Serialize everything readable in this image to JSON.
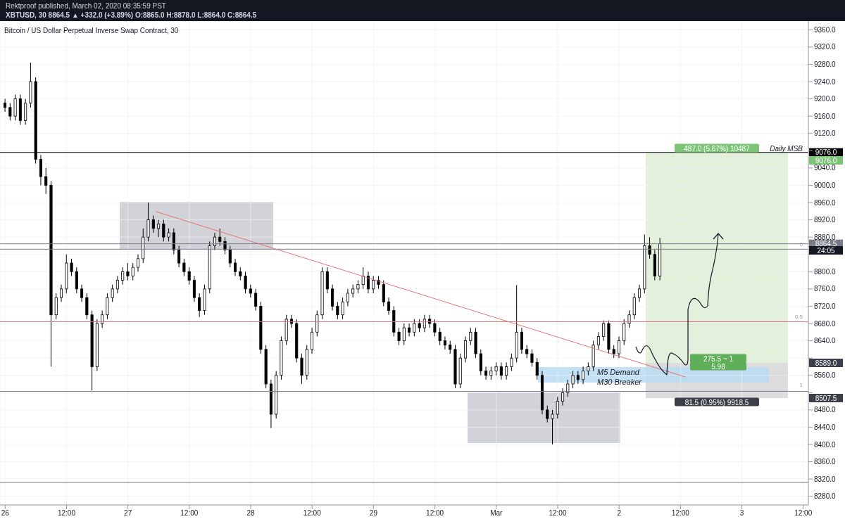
{
  "chart_data": {
    "type": "candlestick",
    "title": "Bitcoin / US Dollar Perpetual Inverse Swap Contract, 30",
    "color": "#000000",
    "x": [
      "2020-02-26T00:00",
      "2020-02-26T01:00",
      "2020-02-26T02:00",
      "2020-02-26T03:00",
      "2020-02-26T04:00",
      "2020-02-26T05:00",
      "2020-02-26T06:00",
      "2020-02-26T07:00",
      "2020-02-26T08:00",
      "2020-02-26T09:00",
      "2020-02-26T10:00",
      "2020-02-26T11:00",
      "2020-02-26T12:00",
      "2020-02-26T13:00",
      "2020-02-26T14:00",
      "2020-02-26T15:00",
      "2020-02-26T16:00",
      "2020-02-26T17:00",
      "2020-02-26T18:00",
      "2020-02-26T19:00",
      "2020-02-26T20:00",
      "2020-02-26T21:00",
      "2020-02-26T22:00",
      "2020-02-26T23:00",
      "2020-02-27T00:00",
      "2020-02-27T01:00",
      "2020-02-27T02:00",
      "2020-02-27T03:00",
      "2020-02-27T04:00",
      "2020-02-27T05:00",
      "2020-02-27T06:00",
      "2020-02-27T07:00",
      "2020-02-27T08:00",
      "2020-02-27T09:00",
      "2020-02-27T10:00",
      "2020-02-27T11:00",
      "2020-02-27T12:00",
      "2020-02-27T13:00",
      "2020-02-27T14:00",
      "2020-02-27T15:00",
      "2020-02-27T16:00",
      "2020-02-27T17:00",
      "2020-02-27T18:00",
      "2020-02-27T19:00",
      "2020-02-27T20:00",
      "2020-02-27T21:00",
      "2020-02-27T22:00",
      "2020-02-27T23:00",
      "2020-02-28T00:00",
      "2020-02-28T01:00",
      "2020-02-28T02:00",
      "2020-02-28T03:00",
      "2020-02-28T04:00",
      "2020-02-28T05:00",
      "2020-02-28T06:00",
      "2020-02-28T07:00",
      "2020-02-28T08:00",
      "2020-02-28T09:00",
      "2020-02-28T10:00",
      "2020-02-28T11:00",
      "2020-02-28T12:00",
      "2020-02-28T13:00",
      "2020-02-28T14:00",
      "2020-02-28T15:00",
      "2020-02-28T16:00",
      "2020-02-28T17:00",
      "2020-02-28T18:00",
      "2020-02-28T19:00",
      "2020-02-28T20:00",
      "2020-02-28T21:00",
      "2020-02-28T22:00",
      "2020-02-28T23:00",
      "2020-02-29T00:00",
      "2020-02-29T01:00",
      "2020-02-29T02:00",
      "2020-02-29T03:00",
      "2020-02-29T04:00",
      "2020-02-29T05:00",
      "2020-02-29T06:00",
      "2020-02-29T07:00",
      "2020-02-29T08:00",
      "2020-02-29T09:00",
      "2020-02-29T10:00",
      "2020-02-29T11:00",
      "2020-02-29T12:00",
      "2020-02-29T13:00",
      "2020-02-29T14:00",
      "2020-02-29T15:00",
      "2020-02-29T16:00",
      "2020-02-29T17:00",
      "2020-02-29T18:00",
      "2020-02-29T19:00",
      "2020-02-29T20:00",
      "2020-02-29T21:00",
      "2020-02-29T22:00",
      "2020-02-29T23:00",
      "2020-03-01T00:00",
      "2020-03-01T01:00",
      "2020-03-01T02:00",
      "2020-03-01T03:00",
      "2020-03-01T04:00",
      "2020-03-01T05:00",
      "2020-03-01T06:00",
      "2020-03-01T07:00",
      "2020-03-01T08:00",
      "2020-03-01T09:00",
      "2020-03-01T10:00",
      "2020-03-01T11:00",
      "2020-03-01T12:00",
      "2020-03-01T13:00",
      "2020-03-01T14:00",
      "2020-03-01T15:00",
      "2020-03-01T16:00",
      "2020-03-01T17:00",
      "2020-03-01T18:00",
      "2020-03-01T19:00",
      "2020-03-01T20:00",
      "2020-03-01T21:00",
      "2020-03-01T22:00",
      "2020-03-01T23:00",
      "2020-03-02T00:00",
      "2020-03-02T01:00",
      "2020-03-02T02:00",
      "2020-03-02T03:00",
      "2020-03-02T04:00",
      "2020-03-02T05:00",
      "2020-03-02T06:00",
      "2020-03-02T07:00",
      "2020-03-02T08:00"
    ],
    "ohlc": [
      [
        9190,
        9200,
        9170,
        9180
      ],
      [
        9180,
        9190,
        9150,
        9160
      ],
      [
        9160,
        9210,
        9150,
        9200
      ],
      [
        9200,
        9210,
        9140,
        9150
      ],
      [
        9150,
        9200,
        9140,
        9190
      ],
      [
        9190,
        9284,
        9180,
        9240
      ],
      [
        9240,
        9250,
        9050,
        9060
      ],
      [
        9060,
        9070,
        9000,
        9020
      ],
      [
        9020,
        9040,
        8980,
        9000
      ],
      [
        9000,
        9010,
        8580,
        8700
      ],
      [
        8700,
        8750,
        8690,
        8740
      ],
      [
        8740,
        8770,
        8730,
        8760
      ],
      [
        8760,
        8840,
        8750,
        8820
      ],
      [
        8820,
        8830,
        8790,
        8800
      ],
      [
        8800,
        8810,
        8750,
        8760
      ],
      [
        8760,
        8770,
        8730,
        8740
      ],
      [
        8740,
        8750,
        8690,
        8700
      ],
      [
        8700,
        8710,
        8525,
        8580
      ],
      [
        8580,
        8690,
        8570,
        8680
      ],
      [
        8680,
        8710,
        8670,
        8700
      ],
      [
        8700,
        8750,
        8690,
        8740
      ],
      [
        8740,
        8770,
        8730,
        8760
      ],
      [
        8760,
        8790,
        8750,
        8780
      ],
      [
        8780,
        8810,
        8770,
        8800
      ],
      [
        8800,
        8820,
        8780,
        8790
      ],
      [
        8790,
        8820,
        8780,
        8810
      ],
      [
        8810,
        8840,
        8800,
        8830
      ],
      [
        8830,
        8900,
        8820,
        8880
      ],
      [
        8880,
        8960,
        8870,
        8920
      ],
      [
        8920,
        8930,
        8890,
        8900
      ],
      [
        8900,
        8920,
        8880,
        8910
      ],
      [
        8910,
        8920,
        8870,
        8880
      ],
      [
        8880,
        8900,
        8870,
        8890
      ],
      [
        8890,
        8900,
        8840,
        8850
      ],
      [
        8850,
        8860,
        8810,
        8820
      ],
      [
        8820,
        8830,
        8790,
        8800
      ],
      [
        8800,
        8810,
        8770,
        8780
      ],
      [
        8780,
        8790,
        8730,
        8740
      ],
      [
        8740,
        8750,
        8695,
        8710
      ],
      [
        8710,
        8770,
        8700,
        8760
      ],
      [
        8760,
        8870,
        8750,
        8860
      ],
      [
        8860,
        8890,
        8850,
        8880
      ],
      [
        8880,
        8900,
        8860,
        8870
      ],
      [
        8870,
        8880,
        8840,
        8850
      ],
      [
        8850,
        8860,
        8810,
        8820
      ],
      [
        8820,
        8830,
        8790,
        8800
      ],
      [
        8800,
        8810,
        8780,
        8790
      ],
      [
        8790,
        8800,
        8750,
        8760
      ],
      [
        8760,
        8770,
        8740,
        8750
      ],
      [
        8750,
        8760,
        8710,
        8720
      ],
      [
        8720,
        8730,
        8610,
        8620
      ],
      [
        8620,
        8630,
        8530,
        8540
      ],
      [
        8540,
        8550,
        8438,
        8470
      ],
      [
        8470,
        8570,
        8460,
        8560
      ],
      [
        8560,
        8650,
        8550,
        8640
      ],
      [
        8640,
        8700,
        8630,
        8690
      ],
      [
        8690,
        8700,
        8670,
        8680
      ],
      [
        8680,
        8690,
        8590,
        8600
      ],
      [
        8600,
        8610,
        8540,
        8560
      ],
      [
        8560,
        8630,
        8550,
        8620
      ],
      [
        8620,
        8670,
        8610,
        8660
      ],
      [
        8660,
        8710,
        8650,
        8700
      ],
      [
        8700,
        8810,
        8690,
        8800
      ],
      [
        8800,
        8810,
        8750,
        8760
      ],
      [
        8760,
        8770,
        8710,
        8720
      ],
      [
        8720,
        8730,
        8690,
        8700
      ],
      [
        8700,
        8740,
        8690,
        8730
      ],
      [
        8730,
        8760,
        8720,
        8750
      ],
      [
        8750,
        8770,
        8740,
        8760
      ],
      [
        8760,
        8780,
        8750,
        8770
      ],
      [
        8770,
        8810,
        8760,
        8790
      ],
      [
        8790,
        8800,
        8750,
        8760
      ],
      [
        8760,
        8790,
        8750,
        8780
      ],
      [
        8780,
        8790,
        8760,
        8770
      ],
      [
        8770,
        8780,
        8720,
        8730
      ],
      [
        8730,
        8740,
        8700,
        8710
      ],
      [
        8710,
        8720,
        8650,
        8660
      ],
      [
        8660,
        8670,
        8630,
        8640
      ],
      [
        8640,
        8680,
        8630,
        8670
      ],
      [
        8670,
        8680,
        8650,
        8660
      ],
      [
        8660,
        8690,
        8650,
        8680
      ],
      [
        8680,
        8690,
        8660,
        8670
      ],
      [
        8670,
        8700,
        8660,
        8690
      ],
      [
        8690,
        8700,
        8670,
        8680
      ],
      [
        8680,
        8690,
        8650,
        8660
      ],
      [
        8660,
        8670,
        8630,
        8640
      ],
      [
        8640,
        8650,
        8620,
        8630
      ],
      [
        8630,
        8640,
        8610,
        8620
      ],
      [
        8620,
        8630,
        8530,
        8540
      ],
      [
        8540,
        8610,
        8530,
        8600
      ],
      [
        8600,
        8650,
        8590,
        8640
      ],
      [
        8640,
        8670,
        8630,
        8660
      ],
      [
        8660,
        8670,
        8600,
        8610
      ],
      [
        8610,
        8620,
        8560,
        8570
      ],
      [
        8570,
        8580,
        8550,
        8560
      ],
      [
        8560,
        8580,
        8550,
        8570
      ],
      [
        8570,
        8590,
        8560,
        8580
      ],
      [
        8580,
        8590,
        8550,
        8560
      ],
      [
        8560,
        8590,
        8550,
        8580
      ],
      [
        8580,
        8610,
        8570,
        8600
      ],
      [
        8600,
        8769,
        8590,
        8660
      ],
      [
        8660,
        8670,
        8610,
        8620
      ],
      [
        8620,
        8630,
        8600,
        8610
      ],
      [
        8610,
        8620,
        8580,
        8590
      ],
      [
        8590,
        8600,
        8550,
        8560
      ],
      [
        8560,
        8570,
        8470,
        8480
      ],
      [
        8480,
        8490,
        8451,
        8460
      ],
      [
        8460,
        8480,
        8400,
        8470
      ],
      [
        8470,
        8510,
        8460,
        8500
      ],
      [
        8500,
        8530,
        8490,
        8520
      ],
      [
        8520,
        8550,
        8510,
        8540
      ],
      [
        8540,
        8570,
        8530,
        8560
      ],
      [
        8560,
        8570,
        8540,
        8550
      ],
      [
        8550,
        8580,
        8540,
        8570
      ],
      [
        8570,
        8590,
        8560,
        8580
      ],
      [
        8580,
        8640,
        8570,
        8630
      ],
      [
        8630,
        8660,
        8620,
        8650
      ],
      [
        8650,
        8687,
        8640,
        8680
      ],
      [
        8680,
        8687,
        8610,
        8620
      ],
      [
        8620,
        8630,
        8600,
        8610
      ],
      [
        8610,
        8650,
        8600,
        8640
      ],
      [
        8640,
        8690,
        8630,
        8680
      ],
      [
        8680,
        8710,
        8670,
        8700
      ],
      [
        8700,
        8750,
        8690,
        8740
      ],
      [
        8740,
        8770,
        8730,
        8760
      ],
      [
        8760,
        8886,
        8750,
        8860
      ],
      [
        8860,
        8880,
        8830,
        8840
      ],
      [
        8840,
        8850,
        8780,
        8790
      ],
      [
        8790,
        8878,
        8780,
        8864.5
      ]
    ],
    "series": [
      {
        "type": "line",
        "color": "#e57373",
        "x": [
          "2020-02-27T05:30",
          "2020-03-02T13:00"
        ],
        "values": [
          8939,
          8556
        ]
      }
    ],
    "xlim": [
      "2020-02-25T23:00",
      "2020-03-03T13:00"
    ],
    "xticks": [
      {
        "value": "2020-02-26",
        "label": "26"
      },
      {
        "value": "2020-02-26T12:00",
        "label": "12:00"
      },
      {
        "value": "2020-02-27",
        "label": "27"
      },
      {
        "value": "2020-02-27T12:00",
        "label": "12:00"
      },
      {
        "value": "2020-02-28",
        "label": "28"
      },
      {
        "value": "2020-02-28T12:00",
        "label": "12:00"
      },
      {
        "value": "2020-02-29",
        "label": "29"
      },
      {
        "value": "2020-02-29T12:00",
        "label": "12:00"
      },
      {
        "value": "2020-03-01",
        "label": "Mar"
      },
      {
        "value": "2020-03-01T12:00",
        "label": "12:00"
      },
      {
        "value": "2020-03-02",
        "label": "2"
      },
      {
        "value": "2020-03-02T12:00",
        "label": "12:00"
      },
      {
        "value": "2020-03-03",
        "label": "3"
      },
      {
        "value": "2020-03-03T12:00",
        "label": "12:00"
      }
    ],
    "ylim": [
      8260,
      9380
    ],
    "yticks": [
      {
        "value": 8280,
        "label": "8280.0"
      },
      {
        "value": 8320,
        "label": "8320.0"
      },
      {
        "value": 8360,
        "label": "8360.0"
      },
      {
        "value": 8400,
        "label": "8400.0"
      },
      {
        "value": 8440,
        "label": "8440.0"
      },
      {
        "value": 8480,
        "label": "8480.0"
      },
      {
        "value": 8520,
        "label": null
      },
      {
        "value": 8560,
        "label": "8560.0"
      },
      {
        "value": 8600,
        "label": null
      },
      {
        "value": 8640,
        "label": "8640.0"
      },
      {
        "value": 8680,
        "label": "8680.0"
      },
      {
        "value": 8720,
        "label": "8720.0"
      },
      {
        "value": 8760,
        "label": "8760.0"
      },
      {
        "value": 8800,
        "label": "8800.0"
      },
      {
        "value": 8840,
        "label": null
      },
      {
        "value": 8880,
        "label": "8880.0"
      },
      {
        "value": 8920,
        "label": "8920.0"
      },
      {
        "value": 8960,
        "label": "8960.0"
      },
      {
        "value": 9000,
        "label": "9000.0"
      },
      {
        "value": 9040,
        "label": "9040.0"
      },
      {
        "value": 9080,
        "label": null
      },
      {
        "value": 9120,
        "label": "9120.0"
      },
      {
        "value": 9160,
        "label": "9160.0"
      },
      {
        "value": 9200,
        "label": "9200.0"
      },
      {
        "value": 9240,
        "label": "9240.0"
      },
      {
        "value": 9280,
        "label": "9280.0"
      },
      {
        "value": 9320,
        "label": "9320.0"
      },
      {
        "value": 9360,
        "label": "9360.0"
      }
    ],
    "grid": true,
    "ref_lines": [
      {
        "axis": "y",
        "value": 9076,
        "label": "9076.0",
        "color": "#000000"
      },
      {
        "axis": "y",
        "value": 8864.5,
        "label": "8864.5",
        "color": "#787b86"
      },
      {
        "axis": "y",
        "value": 8852,
        "color": "#787b86"
      },
      {
        "axis": "y",
        "value": 8684,
        "color": "#e57373"
      },
      {
        "axis": "y",
        "value": 8523,
        "color": "#787b86"
      },
      {
        "axis": "y",
        "value": 8312,
        "color": "#787b86"
      }
    ],
    "annotations": [
      "Rektproof published, March 02, 2020 08:35:59 PST",
      "XBTUSD, 30  8864.5 ▲ +332.0 (+3.89%) O:8865.0 H:8878.0 L:8864.0 C:8864.5",
      "Daily MSB",
      "487.0 (5.67%) 10487",
      "275.5 ~ 1",
      "5.98",
      "81.5 (0.95%) 9918.5",
      "9076.0",
      "24:05",
      "8589.0",
      "8507.5",
      "0",
      "0.5",
      "1",
      "M5 Demand",
      "M30 Breaker"
    ]
  }
}
